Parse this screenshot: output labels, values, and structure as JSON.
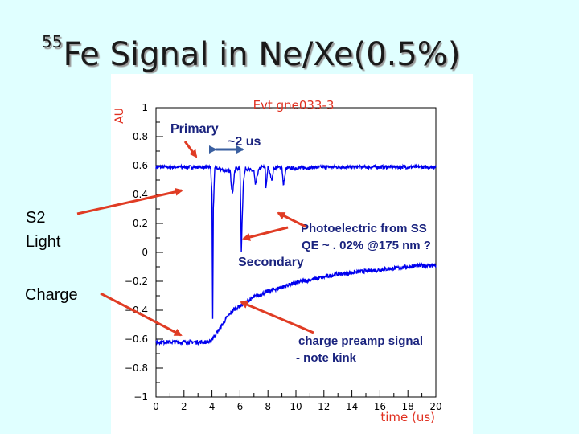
{
  "slide": {
    "title_sup": "55",
    "title_main": "Fe Signal in Ne/Xe(0.5%)"
  },
  "side_labels": {
    "s2_line1": "S2",
    "s2_line2": "Light",
    "charge": "Charge"
  },
  "annotations": {
    "primary": "Primary",
    "width": "~2 us",
    "photo_line1": "Photoelectric from SS",
    "photo_line2": "QE ~ . 02% @175 nm ?",
    "secondary": "Secondary",
    "preamp_line1": "charge preamp signal",
    "preamp_line2": "- note kink"
  },
  "colors": {
    "background": "#e0ffff",
    "trace": "#0000ee",
    "arrow": "#e03c24",
    "plot_title": "#e03020",
    "double_arrow": "#3a5fa0"
  },
  "chart_data": {
    "type": "line",
    "title": "Evt gne033-3",
    "xlabel": "time (us)",
    "ylabel": "AU",
    "xlim": [
      0,
      20
    ],
    "ylim": [
      -1,
      1
    ],
    "x_ticks": [
      "0",
      "2",
      "4",
      "6",
      "8",
      "10",
      "12",
      "14",
      "16",
      "18",
      "20"
    ],
    "y_ticks": [
      "1",
      "0.8",
      "0.6",
      "0.4",
      "0.2",
      "0",
      "−0.2",
      "−0.4",
      "−0.6",
      "−0.8",
      "−1"
    ],
    "grid": false,
    "series": [
      {
        "role": "light (PMT)",
        "x": [
          0,
          3.9,
          4.0,
          4.05,
          4.1,
          4.2,
          4.3,
          5.3,
          5.4,
          5.5,
          5.6,
          5.7,
          6.0,
          6.05,
          6.1,
          6.15,
          6.25,
          6.4,
          7.0,
          7.1,
          7.3,
          7.5,
          7.8,
          7.85,
          8.0,
          8.3,
          8.4,
          9.0,
          9.1,
          9.3,
          12,
          20
        ],
        "y": [
          0.59,
          0.59,
          0.4,
          -0.46,
          0.3,
          0.59,
          0.58,
          0.56,
          0.45,
          0.42,
          0.55,
          0.58,
          0.58,
          0.33,
          0.0,
          0.2,
          0.5,
          0.58,
          0.56,
          0.46,
          0.56,
          0.59,
          0.59,
          0.44,
          0.59,
          0.5,
          0.58,
          0.59,
          0.46,
          0.58,
          0.59,
          0.59
        ]
      },
      {
        "role": "charge preamp",
        "x": [
          0,
          3.9,
          4.0,
          4.3,
          4.6,
          5.0,
          5.5,
          6.0,
          6.5,
          7.0,
          8.0,
          9.0,
          10.0,
          11.0,
          12.0,
          13.0,
          14.0,
          15.0,
          16.0,
          17.0,
          18.0,
          19.0,
          20.0
        ],
        "y": [
          -0.62,
          -0.62,
          -0.6,
          -0.56,
          -0.52,
          -0.46,
          -0.4,
          -0.37,
          -0.34,
          -0.31,
          -0.27,
          -0.24,
          -0.21,
          -0.19,
          -0.17,
          -0.15,
          -0.14,
          -0.13,
          -0.12,
          -0.11,
          -0.1,
          -0.09,
          -0.09
        ]
      }
    ]
  }
}
